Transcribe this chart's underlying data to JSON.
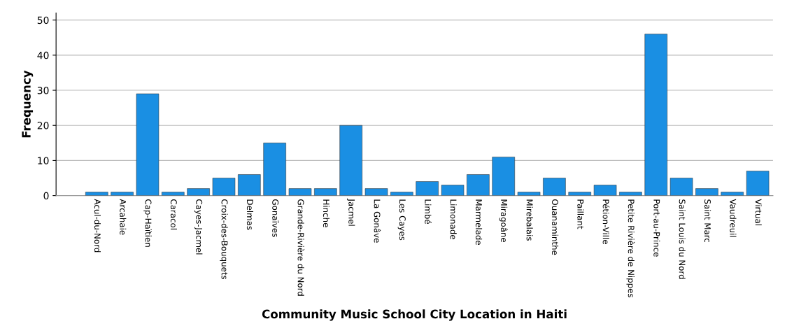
{
  "chart_data": {
    "type": "bar",
    "xlabel": "Community Music School City Location in Haiti",
    "ylabel": "Frequency",
    "categories": [
      "Acul-du-Nord",
      "Arcahaie",
      "Cap-Haïtien",
      "Caracol",
      "Cayes-Jacmel",
      "Croix-des-Bouquets",
      "Delmas",
      "Gonaïves",
      "Grande-Rivière du Nord",
      "Hinche",
      "Jacmel",
      "La Gonâve",
      "Les Cayes",
      "Limbé",
      "Limonade",
      "Marmelade",
      "Miragoâne",
      "Mirebalais",
      "Ouanaminthe",
      "Paillant",
      "Pétion-Ville",
      "Petite Rivière de Nippes",
      "Port-au-Prince",
      "Saint Louis du Nord",
      "Saint Marc",
      "Vaudreuil",
      "Virtual"
    ],
    "values": [
      1,
      1,
      29,
      1,
      2,
      5,
      6,
      15,
      2,
      2,
      20,
      2,
      1,
      4,
      3,
      6,
      11,
      1,
      5,
      1,
      3,
      1,
      46,
      5,
      2,
      1,
      7
    ],
    "color": "#1a8fe3",
    "ylim": [
      0,
      52
    ],
    "yticks": [
      0,
      10,
      20,
      30,
      40,
      50
    ],
    "grid": "y"
  }
}
